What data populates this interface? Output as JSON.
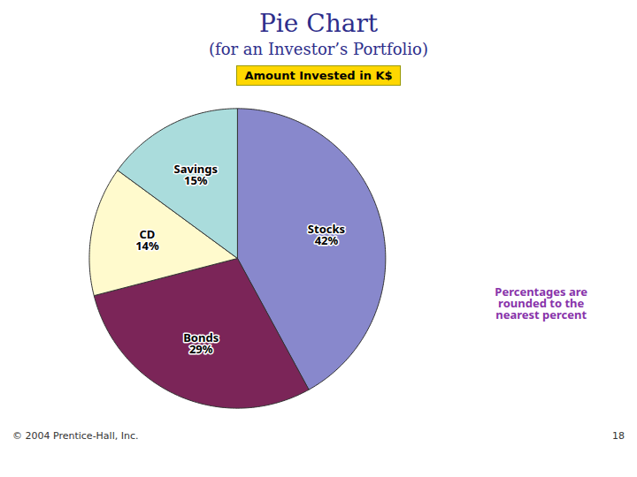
{
  "chart_data": {
    "type": "pie",
    "title": "Pie Chart",
    "subtitle": "(for an Investor’s Portfolio)",
    "categories": [
      "Stocks",
      "Bonds",
      "CD",
      "Savings"
    ],
    "values": [
      42,
      29,
      14,
      15
    ],
    "value_labels": [
      "42%",
      "29%",
      "14%",
      "15%"
    ],
    "colors": [
      "#8888CC",
      "#7B2558",
      "#FFFACD",
      "#AADCDC"
    ],
    "data_labels": true,
    "annotations": [
      "Amount Invested in K$",
      "Percentages are\nrounded to the\nnearest percent",
      "© 2004 Prentice-Hall, Inc.",
      "18"
    ]
  }
}
